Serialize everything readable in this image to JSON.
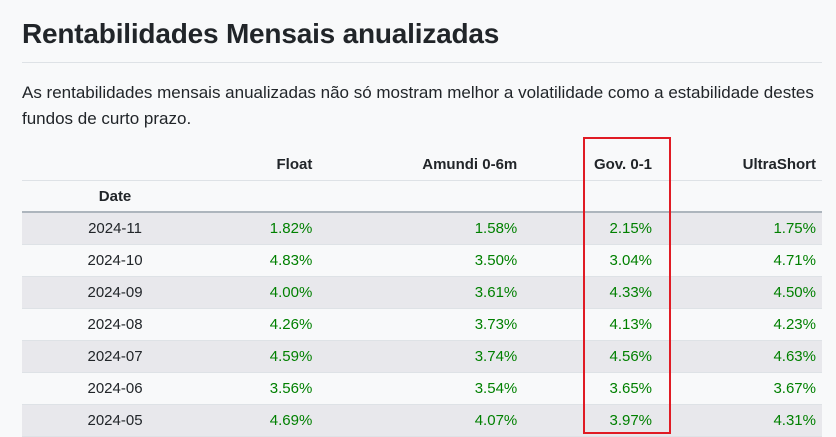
{
  "heading": "Rentabilidades Mensais anualizadas",
  "intro": "As rentabilidades mensais anualizadas não só mostram melhor a volatilidade como a estabilidade destes fundos de curto prazo.",
  "table": {
    "index_label": "Date",
    "columns": [
      "Float",
      "Amundi 0-6m",
      "Gov. 0-1",
      "UltraShort"
    ],
    "rows": [
      {
        "date": "2024-11",
        "values": [
          "1.82%",
          "1.58%",
          "2.15%",
          "1.75%"
        ]
      },
      {
        "date": "2024-10",
        "values": [
          "4.83%",
          "3.50%",
          "3.04%",
          "4.71%"
        ]
      },
      {
        "date": "2024-09",
        "values": [
          "4.00%",
          "3.61%",
          "4.33%",
          "4.50%"
        ]
      },
      {
        "date": "2024-08",
        "values": [
          "4.26%",
          "3.73%",
          "4.13%",
          "4.23%"
        ]
      },
      {
        "date": "2024-07",
        "values": [
          "4.59%",
          "3.74%",
          "4.56%",
          "4.63%"
        ]
      },
      {
        "date": "2024-06",
        "values": [
          "3.56%",
          "3.54%",
          "3.65%",
          "3.67%"
        ]
      },
      {
        "date": "2024-05",
        "values": [
          "4.69%",
          "4.07%",
          "3.97%",
          "4.31%"
        ]
      }
    ]
  },
  "colors": {
    "value_text": "#008000",
    "highlight_border": "#e01b24",
    "stripe": "#e8e8ec"
  }
}
